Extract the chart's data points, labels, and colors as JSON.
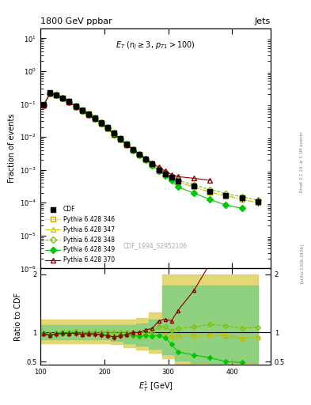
{
  "title": "1800 GeV ppbar",
  "title_right": "Jets",
  "annotation": "E_T (n_j ≥ 3, p_{T1}>100)",
  "xlabel": "E$_T^1$ [GeV]",
  "ylabel_main": "Fraction of events",
  "ylabel_ratio": "Ratio to CDF",
  "watermark": "CDF_1994_S2952106",
  "rivet_label": "Rivet 3.1.10, ≥ 3.1M events",
  "arxiv_label": "[arXiv:1306.3436]",
  "cdf_x": [
    105,
    115,
    125,
    135,
    145,
    155,
    165,
    175,
    185,
    195,
    205,
    215,
    225,
    235,
    245,
    255,
    265,
    275,
    285,
    295,
    305,
    315,
    340,
    365,
    390,
    415,
    440
  ],
  "cdf_y": [
    0.095,
    0.22,
    0.19,
    0.15,
    0.12,
    0.085,
    0.065,
    0.049,
    0.037,
    0.027,
    0.019,
    0.013,
    0.009,
    0.006,
    0.0042,
    0.003,
    0.0021,
    0.0015,
    0.001,
    0.00075,
    0.0006,
    0.00045,
    0.00032,
    0.00022,
    0.00017,
    0.00014,
    0.00011
  ],
  "cdf_yerr": [
    0.008,
    0.015,
    0.013,
    0.01,
    0.009,
    0.006,
    0.005,
    0.004,
    0.003,
    0.002,
    0.0015,
    0.001,
    0.0008,
    0.0006,
    0.0004,
    0.0003,
    0.0002,
    0.00015,
    0.0001,
    8e-05,
    7e-05,
    6e-05,
    5e-05,
    4e-05,
    3e-05,
    3e-05,
    3e-05
  ],
  "p346_x": [
    105,
    115,
    125,
    135,
    145,
    155,
    165,
    175,
    185,
    195,
    205,
    215,
    225,
    235,
    245,
    255,
    265,
    275,
    285,
    295,
    305,
    315,
    340,
    365,
    390,
    415,
    440
  ],
  "p346_y": [
    0.093,
    0.21,
    0.185,
    0.148,
    0.118,
    0.084,
    0.063,
    0.048,
    0.036,
    0.026,
    0.018,
    0.012,
    0.0085,
    0.0058,
    0.004,
    0.0028,
    0.002,
    0.0014,
    0.00095,
    0.00072,
    0.00055,
    0.00042,
    0.0003,
    0.00021,
    0.00016,
    0.000126,
    0.0001
  ],
  "p347_x": [
    105,
    115,
    125,
    135,
    145,
    155,
    165,
    175,
    185,
    195,
    205,
    215,
    225,
    235,
    245,
    255,
    265,
    275,
    285,
    295,
    305,
    315,
    340,
    365,
    390,
    415,
    440
  ],
  "p347_y": [
    0.093,
    0.21,
    0.185,
    0.148,
    0.118,
    0.084,
    0.063,
    0.048,
    0.036,
    0.026,
    0.018,
    0.012,
    0.0085,
    0.0058,
    0.004,
    0.0028,
    0.002,
    0.0014,
    0.00095,
    0.00072,
    0.00055,
    0.00042,
    0.0003,
    0.00021,
    0.000165,
    0.000128,
    0.0001
  ],
  "p348_x": [
    105,
    115,
    125,
    135,
    145,
    155,
    165,
    175,
    185,
    195,
    205,
    215,
    225,
    235,
    245,
    255,
    265,
    275,
    285,
    295,
    305,
    315,
    340,
    365,
    390,
    415,
    440
  ],
  "p348_y": [
    0.094,
    0.215,
    0.188,
    0.15,
    0.12,
    0.086,
    0.064,
    0.049,
    0.037,
    0.027,
    0.019,
    0.013,
    0.009,
    0.006,
    0.0042,
    0.003,
    0.0021,
    0.0015,
    0.0011,
    0.00082,
    0.00062,
    0.00048,
    0.00035,
    0.00025,
    0.00019,
    0.00015,
    0.00012
  ],
  "p349_x": [
    105,
    115,
    125,
    135,
    145,
    155,
    165,
    175,
    185,
    195,
    205,
    215,
    225,
    235,
    245,
    255,
    265,
    275,
    285,
    295,
    305,
    315,
    340,
    365,
    390,
    415
  ],
  "p349_y": [
    0.093,
    0.21,
    0.185,
    0.148,
    0.118,
    0.084,
    0.063,
    0.048,
    0.036,
    0.026,
    0.018,
    0.012,
    0.0085,
    0.0058,
    0.004,
    0.0028,
    0.002,
    0.0014,
    0.00095,
    0.00068,
    0.00048,
    0.0003,
    0.000196,
    0.000125,
    8.5e-05,
    6.8e-05
  ],
  "p370_x": [
    105,
    115,
    125,
    135,
    145,
    155,
    165,
    175,
    185,
    195,
    205,
    215,
    225,
    235,
    245,
    255,
    265,
    275,
    285,
    295,
    305,
    315,
    340,
    365
  ],
  "p370_y": [
    0.093,
    0.21,
    0.185,
    0.148,
    0.118,
    0.084,
    0.063,
    0.048,
    0.036,
    0.026,
    0.018,
    0.012,
    0.0085,
    0.0058,
    0.0042,
    0.003,
    0.0022,
    0.0016,
    0.0012,
    0.00092,
    0.00072,
    0.00062,
    0.00055,
    0.00048
  ],
  "ratio_p346_x": [
    105,
    115,
    125,
    135,
    145,
    155,
    165,
    175,
    185,
    195,
    205,
    215,
    225,
    235,
    245,
    255,
    265,
    275,
    285,
    295,
    305,
    315,
    340,
    365,
    390,
    415,
    440
  ],
  "ratio_p346_y": [
    0.98,
    0.955,
    0.974,
    0.987,
    0.983,
    0.988,
    0.969,
    0.98,
    0.973,
    0.963,
    0.947,
    0.923,
    0.944,
    0.967,
    0.952,
    0.933,
    0.952,
    0.933,
    0.95,
    0.96,
    0.917,
    0.933,
    0.937,
    0.955,
    0.94,
    0.9,
    0.91
  ],
  "ratio_p347_x": [
    105,
    115,
    125,
    135,
    145,
    155,
    165,
    175,
    185,
    195,
    205,
    215,
    225,
    235,
    245,
    255,
    265,
    275,
    285,
    295,
    305,
    315,
    340,
    365,
    390,
    415,
    440
  ],
  "ratio_p347_y": [
    0.98,
    0.955,
    0.974,
    0.987,
    0.983,
    0.988,
    0.969,
    0.98,
    0.973,
    0.963,
    0.947,
    0.923,
    0.944,
    0.967,
    0.952,
    0.933,
    0.952,
    0.933,
    0.95,
    0.96,
    0.917,
    0.933,
    0.937,
    0.955,
    0.97,
    0.914,
    0.91
  ],
  "ratio_p348_x": [
    105,
    115,
    125,
    135,
    145,
    155,
    165,
    175,
    185,
    195,
    205,
    215,
    225,
    235,
    245,
    255,
    265,
    275,
    285,
    295,
    305,
    315,
    340,
    365,
    390,
    415,
    440
  ],
  "ratio_p348_y": [
    0.99,
    0.977,
    0.989,
    1.0,
    1.0,
    1.012,
    0.985,
    1.0,
    1.0,
    1.0,
    1.0,
    1.0,
    1.0,
    1.0,
    1.0,
    1.0,
    1.0,
    1.0,
    1.1,
    1.093,
    1.033,
    1.067,
    1.094,
    1.136,
    1.118,
    1.071,
    1.09
  ],
  "ratio_p349_x": [
    105,
    115,
    125,
    135,
    145,
    155,
    165,
    175,
    185,
    195,
    205,
    215,
    225,
    235,
    245,
    255,
    265,
    275,
    285,
    295,
    305,
    315,
    340,
    365,
    390,
    415
  ],
  "ratio_p349_y": [
    0.98,
    0.955,
    0.974,
    0.987,
    0.983,
    0.988,
    0.969,
    0.98,
    0.973,
    0.963,
    0.947,
    0.923,
    0.944,
    0.967,
    0.952,
    0.933,
    0.952,
    0.933,
    0.95,
    0.907,
    0.8,
    0.667,
    0.6125,
    0.568,
    0.5,
    0.486
  ],
  "ratio_p370_x": [
    105,
    115,
    125,
    135,
    145,
    155,
    165,
    175,
    185,
    195,
    205,
    215,
    225,
    235,
    245,
    255,
    265,
    275,
    285,
    295,
    305,
    315,
    340,
    365
  ],
  "ratio_p370_y": [
    0.98,
    0.955,
    0.974,
    0.987,
    0.983,
    0.988,
    0.969,
    0.98,
    0.973,
    0.963,
    0.947,
    0.923,
    0.944,
    0.967,
    1.0,
    1.0,
    1.048,
    1.067,
    1.2,
    1.227,
    1.2,
    1.378,
    1.72,
    2.18
  ],
  "band_x": [
    100,
    120,
    140,
    160,
    180,
    200,
    220,
    240,
    260,
    280,
    300,
    320,
    350,
    380,
    410,
    440
  ],
  "band_yellow_lo": [
    0.82,
    0.82,
    0.82,
    0.82,
    0.82,
    0.82,
    0.8,
    0.75,
    0.7,
    0.65,
    0.55,
    0.45,
    0.4,
    0.35,
    0.4,
    0.4
  ],
  "band_yellow_hi": [
    1.22,
    1.22,
    1.22,
    1.22,
    1.22,
    1.22,
    1.22,
    1.22,
    1.25,
    1.35,
    2.0,
    2.0,
    2.0,
    2.0,
    2.0,
    2.0
  ],
  "band_green_lo": [
    0.88,
    0.88,
    0.88,
    0.88,
    0.88,
    0.88,
    0.85,
    0.82,
    0.78,
    0.72,
    0.62,
    0.52,
    0.48,
    0.43,
    0.48,
    0.48
  ],
  "band_green_hi": [
    1.12,
    1.12,
    1.12,
    1.12,
    1.12,
    1.12,
    1.12,
    1.12,
    1.15,
    1.22,
    1.8,
    1.8,
    1.8,
    1.8,
    1.8,
    1.8
  ],
  "color_cdf": "#000000",
  "color_p346": "#c8a000",
  "color_p347": "#c8c800",
  "color_p348": "#00c800",
  "color_p349": "#00c800",
  "color_p370": "#8b0000",
  "color_band_yellow": "#e0d060",
  "color_band_green": "#80d080",
  "xlim": [
    100,
    460
  ],
  "ylim_main": [
    1e-06,
    20
  ],
  "ylim_ratio": [
    0.45,
    2.1
  ],
  "legend_entries": [
    "CDF",
    "Pythia 6.428 346",
    "Pythia 6.428 347",
    "Pythia 6.428 348",
    "Pythia 6.428 349",
    "Pythia 6.428 370"
  ]
}
